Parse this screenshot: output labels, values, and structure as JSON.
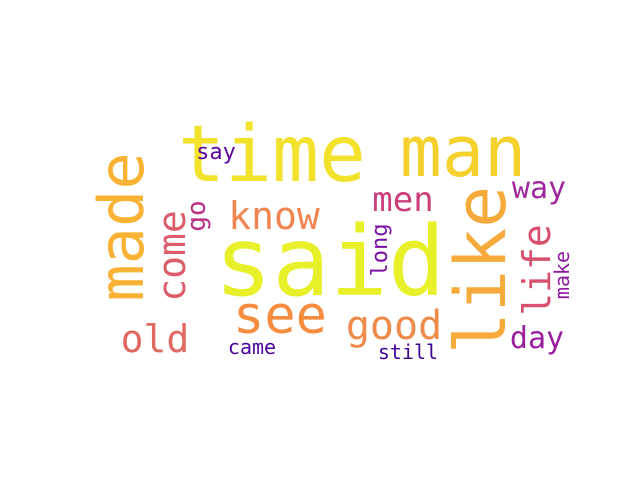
{
  "words": [
    {
      "text": "said",
      "color": "#e8f02a"
    },
    {
      "text": "time",
      "color": "#f2e22c"
    },
    {
      "text": "man",
      "color": "#f4d12c"
    },
    {
      "text": "like",
      "color": "#f7aa3c"
    },
    {
      "text": "made",
      "color": "#f9b233"
    },
    {
      "text": "see",
      "color": "#f58c3e"
    },
    {
      "text": "know",
      "color": "#f08552"
    },
    {
      "text": "good",
      "color": "#ee8a4a"
    },
    {
      "text": "come",
      "color": "#dd5c6c"
    },
    {
      "text": "life",
      "color": "#d8506e"
    },
    {
      "text": "men",
      "color": "#c93f7a"
    },
    {
      "text": "old",
      "color": "#e06a62"
    },
    {
      "text": "way",
      "color": "#a0289a"
    },
    {
      "text": "day",
      "color": "#9a1f9e"
    },
    {
      "text": "go",
      "color": "#b8327f"
    },
    {
      "text": "long",
      "color": "#7a11a4"
    },
    {
      "text": "make",
      "color": "#8e1aa0"
    },
    {
      "text": "say",
      "color": "#5c069f"
    },
    {
      "text": "came",
      "color": "#4a069d"
    },
    {
      "text": "still",
      "color": "#3e0496"
    }
  ]
}
